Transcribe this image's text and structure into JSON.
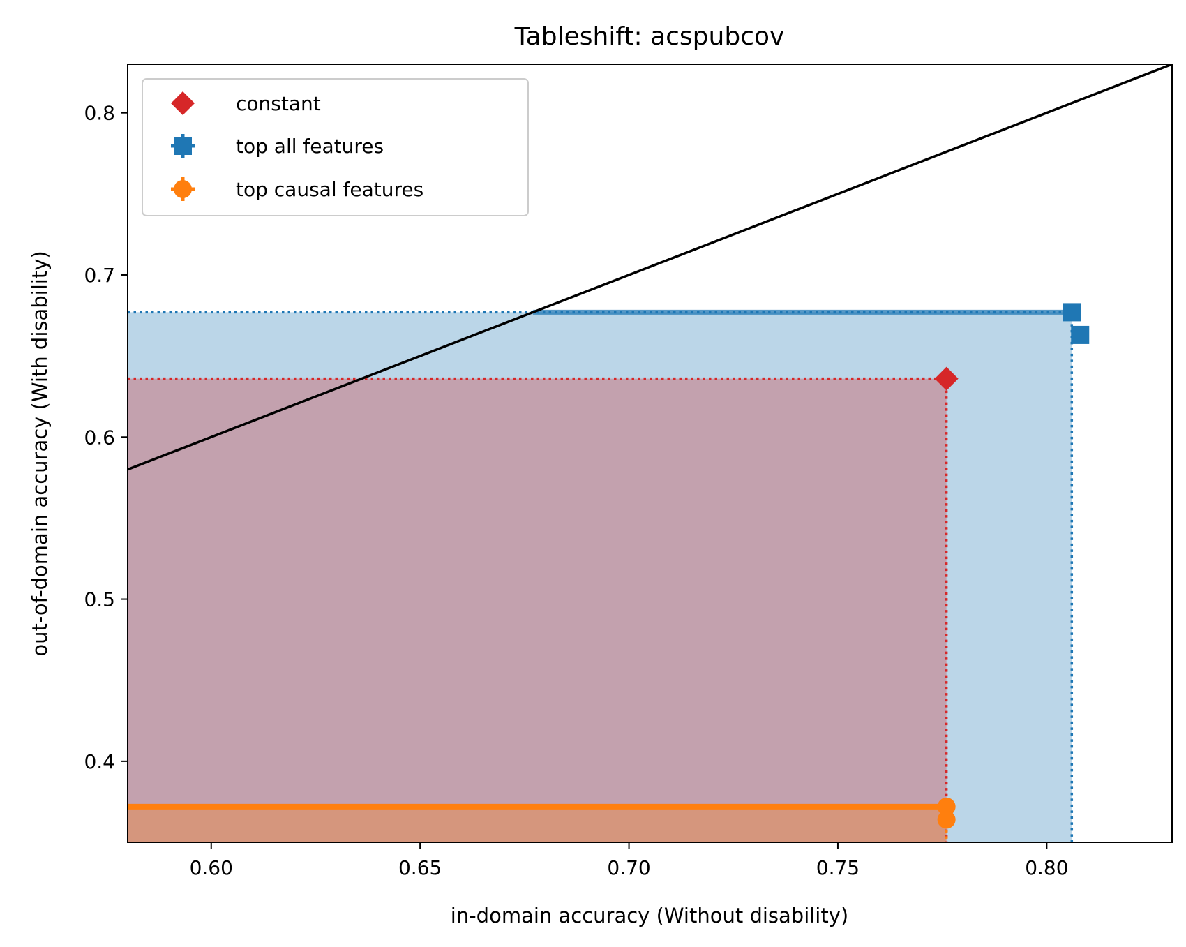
{
  "chart_data": {
    "type": "scatter",
    "title": "Tableshift: acspubcov",
    "xlabel": "in-domain accuracy (Without disability)",
    "ylabel": "out-of-domain accuracy (With disability)",
    "xlim": [
      0.58,
      0.83
    ],
    "ylim": [
      0.35,
      0.83
    ],
    "xticks": [
      "0.60",
      "0.65",
      "0.70",
      "0.75",
      "0.80"
    ],
    "yticks": [
      "0.4",
      "0.5",
      "0.6",
      "0.7",
      "0.8"
    ],
    "grid": false,
    "legend_position": "top-left",
    "reference_line": {
      "kind": "y = x",
      "color": "#000000"
    },
    "series": [
      {
        "name": "constant",
        "marker": "diamond",
        "color": "#d62728",
        "points": [
          {
            "x": 0.776,
            "y": 0.636
          }
        ]
      },
      {
        "name": "top all features",
        "marker": "square",
        "color": "#1f77b4",
        "points": [
          {
            "x": 0.806,
            "y": 0.677
          },
          {
            "x": 0.808,
            "y": 0.663
          }
        ]
      },
      {
        "name": "top causal features",
        "marker": "circle",
        "color": "#ff7f0e",
        "points": [
          {
            "x": 0.776,
            "y": 0.372
          },
          {
            "x": 0.776,
            "y": 0.364
          }
        ]
      }
    ]
  }
}
